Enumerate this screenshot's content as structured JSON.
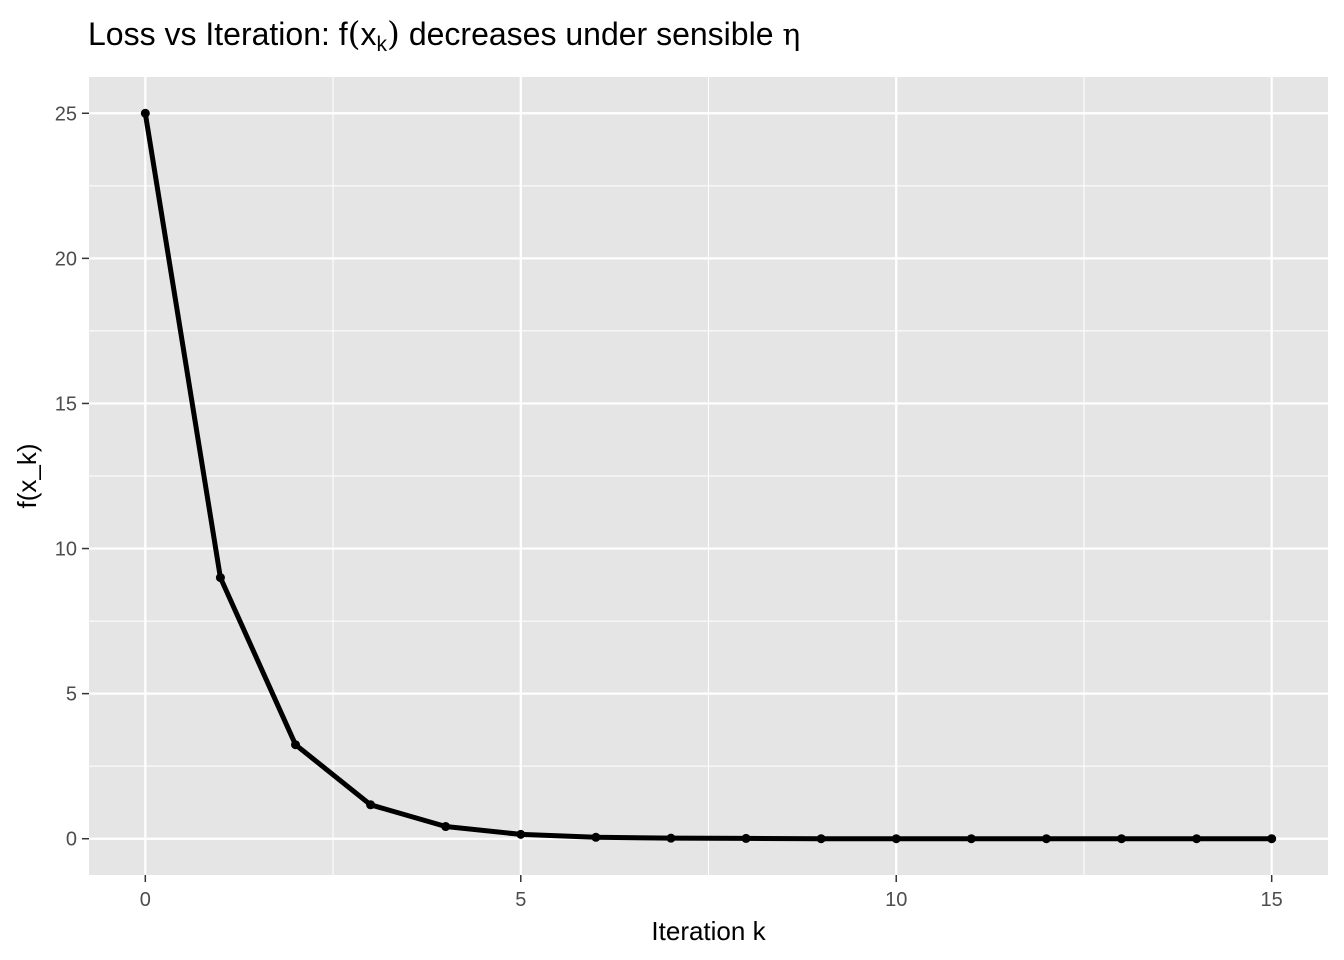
{
  "chart_data": {
    "type": "line",
    "title": {
      "prefix": "Loss vs Iteration: f",
      "open": "(",
      "x": "x",
      "sub": "k",
      "close": ")",
      "suffix": " decreases under sensible ",
      "eta": "η"
    },
    "xlabel": "Iteration k",
    "ylabel": "f(x_k)",
    "xlim": [
      -0.75,
      15.75
    ],
    "ylim": [
      -1.25,
      26.25
    ],
    "x_ticks": [
      0,
      5,
      10,
      15
    ],
    "x_tick_labels": [
      "0",
      "5",
      "10",
      "15"
    ],
    "x_minor_ticks": [
      2.5,
      7.5,
      12.5
    ],
    "y_ticks": [
      0,
      5,
      10,
      15,
      20,
      25
    ],
    "y_tick_labels": [
      "0",
      "5",
      "10",
      "15",
      "20",
      "25"
    ],
    "y_minor_ticks": [
      2.5,
      7.5,
      12.5,
      17.5,
      22.5
    ],
    "grid": true,
    "series": [
      {
        "x": [
          0,
          1,
          2,
          3,
          4,
          5,
          6,
          7,
          8,
          9,
          10,
          11,
          12,
          13,
          14,
          15
        ],
        "values": [
          25,
          9,
          3.24,
          1.17,
          0.42,
          0.15,
          0.05,
          0.02,
          0.01,
          0,
          0,
          0,
          0,
          0,
          0,
          0
        ]
      }
    ],
    "colors": {
      "panel": "#e5e5e5",
      "grid": "#ffffff",
      "line": "#000000",
      "tick_text": "#4d4d4d"
    }
  }
}
